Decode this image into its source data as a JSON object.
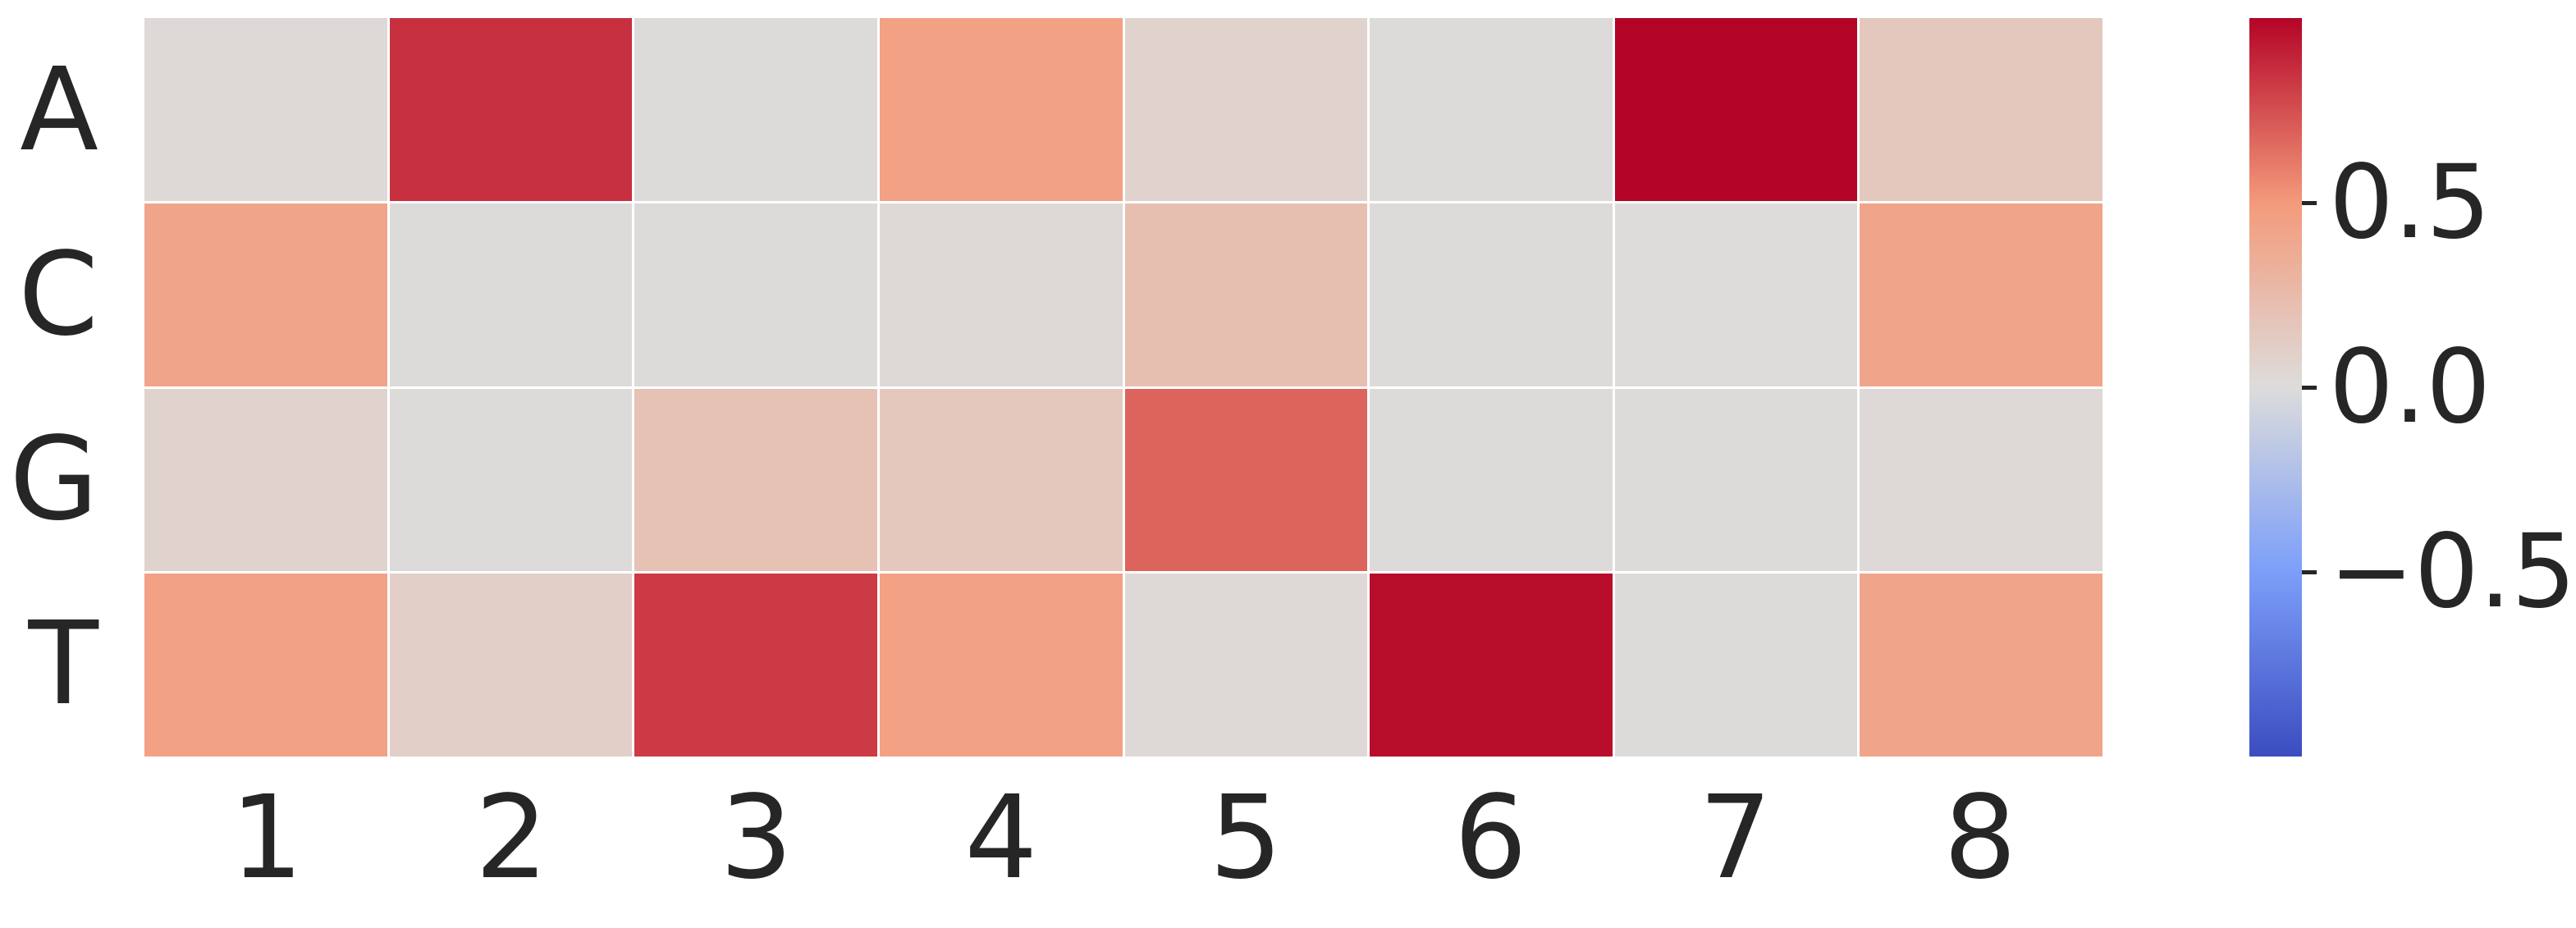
{
  "chart_data": {
    "type": "heatmap",
    "title": "",
    "xlabel": "",
    "ylabel": "",
    "rows": [
      "A",
      "C",
      "G",
      "T"
    ],
    "columns": [
      "1",
      "2",
      "3",
      "4",
      "5",
      "6",
      "7",
      "8"
    ],
    "values": [
      [
        0.02,
        0.85,
        0.01,
        0.45,
        0.07,
        0.01,
        1.0,
        0.15
      ],
      [
        0.42,
        0.01,
        0.01,
        0.02,
        0.22,
        0.01,
        0.0,
        0.42
      ],
      [
        0.07,
        0.01,
        0.2,
        0.15,
        0.68,
        0.01,
        0.01,
        0.02
      ],
      [
        0.45,
        0.1,
        0.82,
        0.45,
        0.02,
        0.97,
        0.01,
        0.42
      ]
    ],
    "colormap": "coolwarm",
    "vmin": -1.0,
    "vmax": 1.0,
    "grid": false,
    "legend_position": "right",
    "colorbar_ticks": [
      "0.5",
      "0.0",
      "−0.5"
    ],
    "colorbar_tick_values": [
      0.5,
      0.0,
      -0.5
    ]
  },
  "colors": {
    "background": "#ffffff",
    "text": "#262626",
    "cmap_min": "#3b4cc0",
    "cmap_mid": "#dddcdb",
    "cmap_max": "#b40426",
    "cell_gap": "#ffffff"
  }
}
